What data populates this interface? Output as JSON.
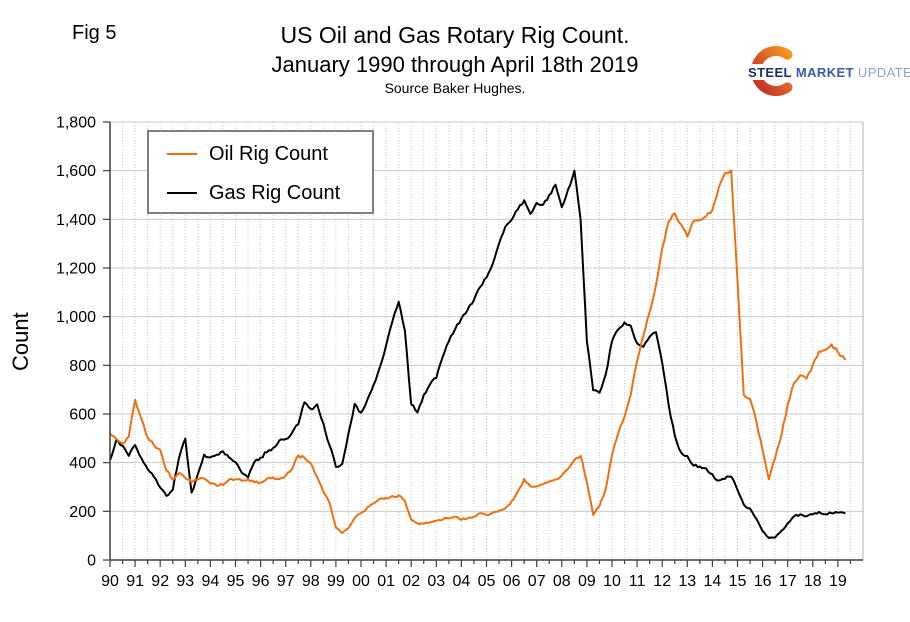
{
  "header": {
    "fig_label": "Fig 5",
    "title_line1": "US Oil and Gas Rotary Rig Count.",
    "title_line2": "January 1990 through April 18th 2019",
    "source": "Source Baker Hughes."
  },
  "logo": {
    "word1": "STEEL",
    "word2": "MARKET",
    "word3": "UPDATE",
    "colors": {
      "word1": "#16316E",
      "word2": "#3A5CA8",
      "word3": "#8CA3CE",
      "swoosh_start": "#C1272D",
      "swoosh_end": "#F7941E"
    }
  },
  "chart_data": {
    "type": "line",
    "title": "US Oil and Gas Rotary Rig Count.",
    "subtitle": "January 1990 through April 18th 2019",
    "source": "Source Baker Hughes.",
    "ylabel": "Count",
    "ylim": [
      0,
      1800
    ],
    "ytick_step": 200,
    "yticks": [
      0,
      200,
      400,
      600,
      800,
      1000,
      1200,
      1400,
      1600,
      1800
    ],
    "ytick_labels": [
      "0",
      "200",
      "400",
      "600",
      "800",
      "1,000",
      "1,200",
      "1,400",
      "1,600",
      "1,800"
    ],
    "x_range": [
      1990,
      2020
    ],
    "x_unit": "decimal year, quarterly samples, last point = April 2019",
    "xtick_years": [
      1990,
      1991,
      1992,
      1993,
      1994,
      1995,
      1996,
      1997,
      1998,
      1999,
      2000,
      2001,
      2002,
      2003,
      2004,
      2005,
      2006,
      2007,
      2008,
      2009,
      2010,
      2011,
      2012,
      2013,
      2014,
      2015,
      2016,
      2017,
      2018,
      2019
    ],
    "xtick_labels": [
      "90",
      "91",
      "92",
      "93",
      "94",
      "95",
      "96",
      "97",
      "98",
      "99",
      "00",
      "01",
      "02",
      "03",
      "04",
      "05",
      "06",
      "07",
      "08",
      "09",
      "10",
      "11",
      "12",
      "13",
      "14",
      "15",
      "16",
      "17",
      "18",
      "19"
    ],
    "grid": {
      "horizontal": "solid light gray every 200",
      "vertical": "dotted light gray every half year"
    },
    "legend_position": "top-left",
    "x": [
      1990,
      1990.25,
      1990.5,
      1990.75,
      1991,
      1991.25,
      1991.5,
      1991.75,
      1992,
      1992.25,
      1992.5,
      1992.75,
      1993,
      1993.25,
      1993.5,
      1993.75,
      1994,
      1994.25,
      1994.5,
      1994.75,
      1995,
      1995.25,
      1995.5,
      1995.75,
      1996,
      1996.25,
      1996.5,
      1996.75,
      1997,
      1997.25,
      1997.5,
      1997.75,
      1998,
      1998.25,
      1998.5,
      1998.75,
      1999,
      1999.25,
      1999.5,
      1999.75,
      2000,
      2000.25,
      2000.5,
      2000.75,
      2001,
      2001.25,
      2001.5,
      2001.75,
      2002,
      2002.25,
      2002.5,
      2002.75,
      2003,
      2003.25,
      2003.5,
      2003.75,
      2004,
      2004.25,
      2004.5,
      2004.75,
      2005,
      2005.25,
      2005.5,
      2005.75,
      2006,
      2006.25,
      2006.5,
      2006.75,
      2007,
      2007.25,
      2007.5,
      2007.75,
      2008,
      2008.25,
      2008.5,
      2008.75,
      2009,
      2009.25,
      2009.5,
      2009.75,
      2010,
      2010.25,
      2010.5,
      2010.75,
      2011,
      2011.25,
      2011.5,
      2011.75,
      2012,
      2012.25,
      2012.5,
      2012.75,
      2013,
      2013.25,
      2013.5,
      2013.75,
      2014,
      2014.25,
      2014.5,
      2014.75,
      2015,
      2015.25,
      2015.5,
      2015.75,
      2016,
      2016.25,
      2016.5,
      2016.75,
      2017,
      2017.25,
      2017.5,
      2017.75,
      2018,
      2018.25,
      2018.5,
      2018.75,
      2019,
      2019.3
    ],
    "series": [
      {
        "name": "Oil Rig Count",
        "color": "#EF6F10",
        "values": [
          520,
          495,
          475,
          510,
          655,
          580,
          505,
          470,
          450,
          370,
          330,
          355,
          340,
          320,
          330,
          335,
          315,
          305,
          310,
          330,
          335,
          325,
          330,
          320,
          320,
          335,
          340,
          330,
          345,
          375,
          430,
          420,
          395,
          340,
          280,
          235,
          135,
          112,
          130,
          175,
          190,
          215,
          235,
          250,
          255,
          260,
          265,
          245,
          165,
          150,
          148,
          155,
          160,
          168,
          172,
          178,
          168,
          172,
          180,
          190,
          185,
          195,
          205,
          210,
          240,
          280,
          330,
          300,
          300,
          310,
          320,
          330,
          345,
          375,
          410,
          430,
          320,
          185,
          220,
          290,
          430,
          520,
          590,
          680,
          820,
          920,
          1020,
          1130,
          1280,
          1390,
          1425,
          1380,
          1330,
          1395,
          1400,
          1410,
          1440,
          1530,
          1590,
          1600,
          1150,
          680,
          665,
          570,
          450,
          330,
          420,
          510,
          640,
          725,
          760,
          745,
          800,
          855,
          865,
          885,
          855,
          822
        ]
      },
      {
        "name": "Gas Rig Count",
        "color": "#000000",
        "values": [
          410,
          490,
          470,
          430,
          475,
          420,
          375,
          340,
          300,
          262,
          290,
          420,
          500,
          275,
          350,
          430,
          420,
          430,
          445,
          420,
          405,
          360,
          340,
          400,
          420,
          445,
          460,
          490,
          495,
          520,
          560,
          650,
          620,
          640,
          560,
          470,
          385,
          395,
          520,
          640,
          605,
          660,
          720,
          790,
          880,
          980,
          1060,
          940,
          640,
          605,
          680,
          720,
          750,
          830,
          900,
          950,
          990,
          1030,
          1070,
          1120,
          1160,
          1220,
          1300,
          1370,
          1400,
          1440,
          1480,
          1420,
          1470,
          1460,
          1500,
          1540,
          1450,
          1520,
          1600,
          1400,
          900,
          700,
          690,
          760,
          900,
          950,
          975,
          960,
          890,
          875,
          920,
          935,
          810,
          640,
          510,
          440,
          425,
          390,
          385,
          375,
          350,
          325,
          335,
          345,
          290,
          225,
          210,
          170,
          120,
          88,
          95,
          120,
          150,
          182,
          185,
          180,
          190,
          195,
          188,
          195,
          195,
          192
        ]
      }
    ]
  }
}
